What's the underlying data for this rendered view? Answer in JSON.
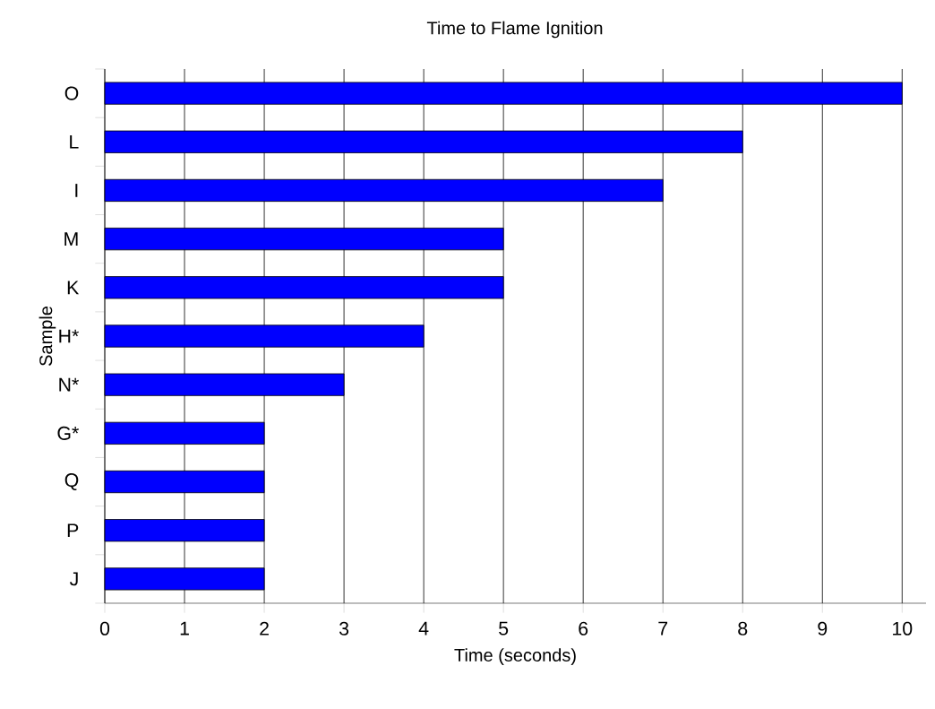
{
  "chart_data": {
    "type": "bar",
    "orientation": "horizontal",
    "title": "Time to Flame Ignition",
    "xlabel": "Time (seconds)",
    "ylabel": "Sample",
    "categories": [
      "O",
      "L",
      "I",
      "M",
      "K",
      "H*",
      "N*",
      "G*",
      "Q",
      "P",
      "J"
    ],
    "values": [
      10,
      8,
      7,
      5,
      5,
      4,
      3,
      2,
      2,
      2,
      2
    ],
    "color": "#0000ff",
    "xlim": [
      0,
      10.3
    ],
    "xticks": [
      0,
      1,
      2,
      3,
      4,
      5,
      6,
      7,
      8,
      9,
      10
    ],
    "grid": "x"
  }
}
